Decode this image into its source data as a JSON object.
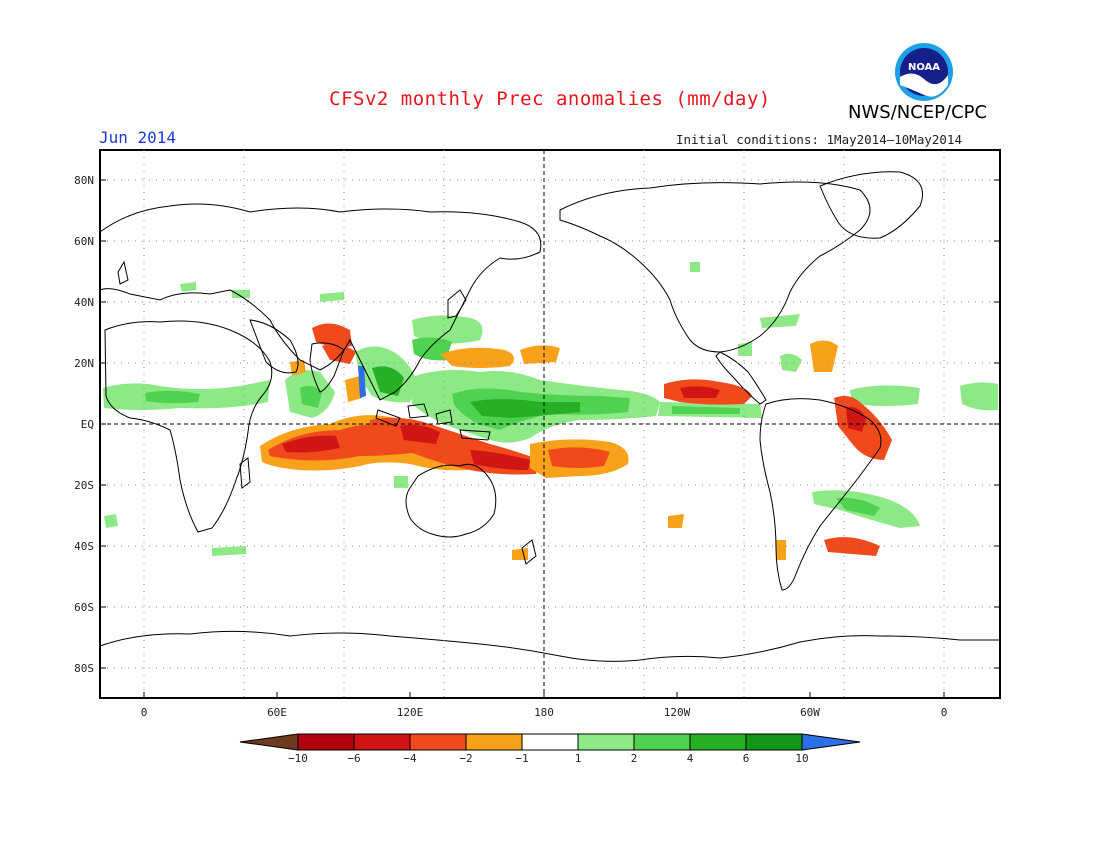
{
  "title": "CFSv2 monthly Prec anomalies (mm/day)",
  "organization": "NWS/NCEP/CPC",
  "logo_text": "NOAA",
  "month": "Jun 2014",
  "initial_conditions": "Initial conditions: 1May2014—10May2014",
  "map": {
    "lat_labels": [
      "80N",
      "60N",
      "40N",
      "20N",
      "EQ",
      "20S",
      "40S",
      "60S",
      "80S"
    ],
    "lon_labels": [
      "0",
      "60E",
      "120E",
      "180",
      "120W",
      "60W",
      "0"
    ]
  },
  "colorbar": {
    "labels": [
      "−10",
      "−6",
      "−4",
      "−2",
      "−1",
      "1",
      "2",
      "4",
      "6",
      "10"
    ],
    "colors": [
      "#6e3a1e",
      "#b3000f",
      "#d11414",
      "#f04a1c",
      "#f7a21a",
      "#ffffff",
      "#8de886",
      "#4fd24f",
      "#26b026",
      "#119617",
      "#2a6fe6"
    ]
  }
}
